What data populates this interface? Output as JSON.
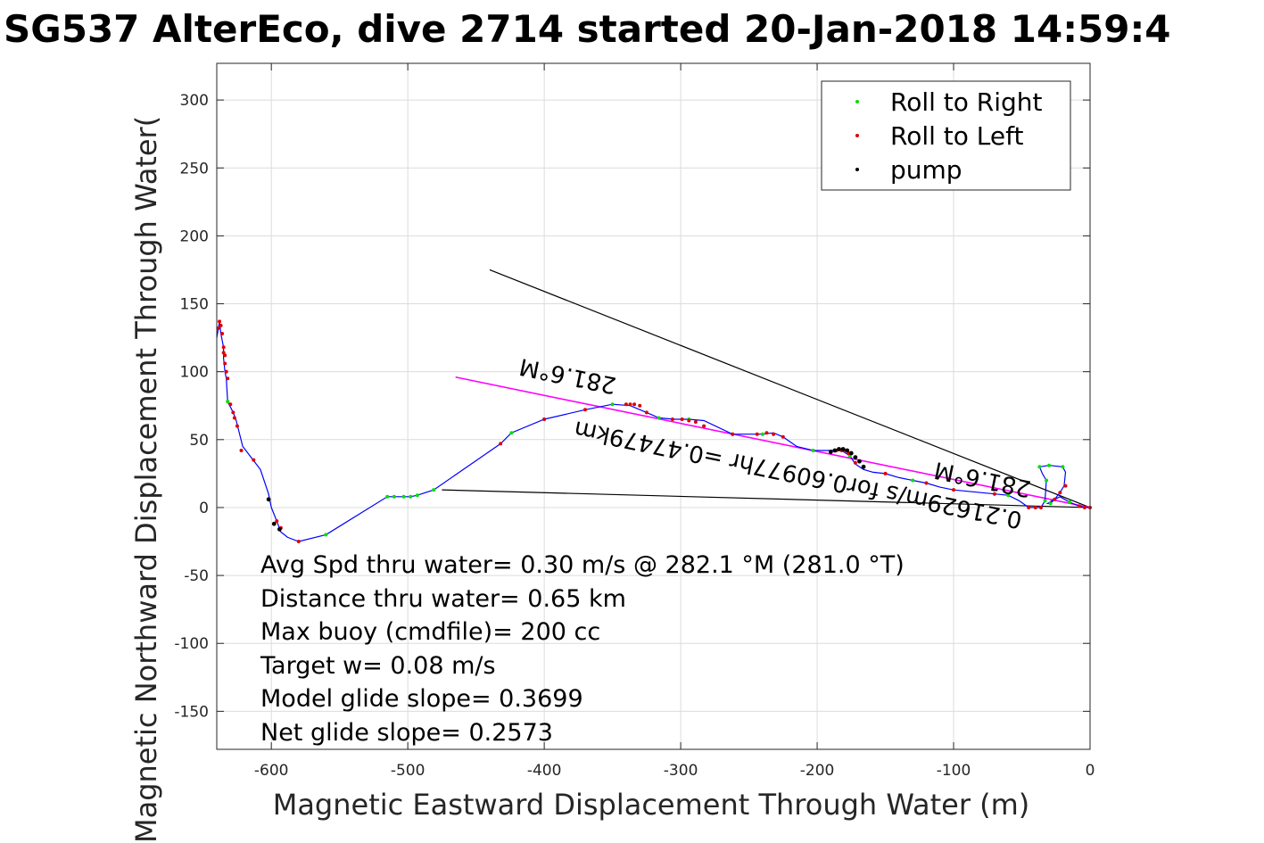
{
  "chart_data": {
    "type": "line",
    "title": "SG537 AlterEco, dive 2714 started 20-Jan-2018 14:59:4",
    "xlabel": "Magnetic Eastward Displacement Through Water (m)",
    "ylabel": "Magnetic Northward Displacement Through Water(",
    "xlim": [
      -640,
      0
    ],
    "ylim": [
      -178,
      327
    ],
    "xticks": [
      -600,
      -500,
      -400,
      -300,
      -200,
      -100,
      0
    ],
    "yticks": [
      -150,
      -100,
      -50,
      0,
      50,
      100,
      150,
      200,
      250,
      300
    ],
    "xtick_labels": [
      "-600",
      "-500",
      "-400",
      "-300",
      "-200",
      "-100",
      "0"
    ],
    "ytick_labels": [
      "-150",
      "-100",
      "-50",
      "0",
      "50",
      "100",
      "150",
      "200",
      "250",
      "300"
    ],
    "grid": true,
    "legend_position": "top-right",
    "legend": [
      {
        "label": "Roll to Right",
        "color": "#00e000"
      },
      {
        "label": "Roll to Left",
        "color": "#e00000"
      },
      {
        "label": "pump",
        "color": "#000000"
      }
    ],
    "track_color": "#0000ff",
    "track": {
      "x": [
        -640,
        -638,
        -637,
        -635,
        -635,
        -634,
        -633,
        -632,
        -628,
        -626,
        -621,
        -608,
        -602,
        -600,
        -596,
        -593,
        -588,
        -580,
        -560,
        -515,
        -510,
        -503,
        -498,
        -493,
        -481,
        -432,
        -424,
        -400,
        -370,
        -350,
        -337,
        -325,
        -316,
        -305,
        -294,
        -283,
        -262,
        -250,
        -240,
        -232,
        -225,
        -215,
        -203,
        -190,
        -182,
        -176,
        -172,
        -166,
        -159,
        -150,
        -140,
        -130,
        -120,
        -110,
        -100,
        -90,
        -80,
        -70,
        -60,
        -52,
        -45,
        -40,
        -36,
        -33,
        -32,
        -35,
        -37,
        -30,
        -20,
        -18,
        -19,
        -22,
        -26,
        -29,
        -31,
        -28,
        -22,
        -15,
        -8,
        -4,
        0
      ],
      "y": [
        125,
        137,
        128,
        118,
        110,
        100,
        95,
        78,
        70,
        65,
        45,
        28,
        10,
        0,
        -10,
        -18,
        -22,
        -25,
        -20,
        8,
        8,
        8,
        8,
        9,
        13,
        47,
        55,
        65,
        72,
        76,
        75,
        70,
        66,
        65,
        65,
        64,
        54,
        54,
        54,
        55,
        52,
        45,
        42,
        42,
        42,
        38,
        32,
        28,
        26,
        25,
        22,
        20,
        18,
        15,
        13,
        12,
        11,
        10,
        9,
        5,
        0,
        0,
        0,
        5,
        20,
        25,
        30,
        31,
        30,
        26,
        16,
        11,
        6,
        3,
        3,
        5,
        8,
        4,
        1,
        0,
        0
      ]
    },
    "roll_right": {
      "x": [
        -632,
        -602,
        -560,
        -515,
        -510,
        -503,
        -498,
        -493,
        -481,
        -424,
        -400,
        -350,
        -316,
        -294,
        -262,
        -240,
        -203,
        -176,
        -130,
        -60,
        -37,
        -33,
        -32,
        -30,
        -20,
        -29,
        -15
      ],
      "y": [
        78,
        6,
        -20,
        8,
        8,
        8,
        8,
        9,
        13,
        55,
        65,
        76,
        66,
        65,
        54,
        54,
        42,
        38,
        20,
        9,
        30,
        5,
        20,
        31,
        30,
        3,
        4
      ]
    },
    "roll_left": {
      "x": [
        -639,
        -638,
        -637,
        -636,
        -635,
        -635,
        -634,
        -634,
        -633,
        -632,
        -630,
        -628,
        -627,
        -625,
        -622,
        -613,
        -596,
        -593,
        -580,
        -432,
        -400,
        -370,
        -340,
        -337,
        -334,
        -330,
        -325,
        -306,
        -299,
        -294,
        -289,
        -283,
        -262,
        -244,
        -237,
        -232,
        -225,
        -186,
        -182,
        -180,
        -177,
        -172,
        -150,
        -120,
        -100,
        -70,
        -45,
        -40,
        -36,
        -26,
        -22,
        -18,
        -8,
        -4,
        0
      ],
      "y": [
        132,
        137,
        134,
        128,
        118,
        114,
        112,
        106,
        100,
        95,
        76,
        70,
        66,
        60,
        42,
        35,
        -10,
        -15,
        -25,
        47,
        65,
        72,
        76,
        76,
        76,
        75,
        70,
        65,
        65,
        64,
        63,
        60,
        54,
        54,
        55,
        54,
        52,
        42,
        42,
        42,
        40,
        33,
        25,
        18,
        13,
        10,
        0,
        0,
        0,
        6,
        11,
        16,
        1,
        0,
        0
      ]
    },
    "pump": {
      "x": [
        -602,
        -598,
        -594,
        -190,
        -187,
        -184,
        -181,
        -178,
        -175,
        -172,
        -169,
        -166
      ],
      "y": [
        6,
        -12,
        -16,
        41,
        42,
        43,
        43,
        42,
        40,
        37,
        34,
        30
      ]
    },
    "black_lines": [
      {
        "x": [
          -440,
          0
        ],
        "y": [
          175,
          0
        ]
      },
      {
        "x": [
          -475,
          0
        ],
        "y": [
          13,
          0
        ]
      }
    ],
    "fit_line": {
      "x": [
        -465,
        0
      ],
      "y": [
        96,
        0
      ],
      "color": "#ff00ff"
    },
    "annotations": {
      "line1_label": "281.6°M",
      "line2_label": "0.47479km",
      "speed_label": "0.21629m/s for0.60977hr =0.47479km",
      "short_label": "281.6°M",
      "tail_label": "0.21629m/s"
    },
    "stats": [
      "Avg Spd thru water=  0.30 m/s @ 282.1 °M (281.0 °T)",
      "Distance thru water=  0.65 km",
      "Max buoy (cmdfile)= 200 cc",
      "Target w= 0.08 m/s",
      "Model glide slope= 0.3699",
      "Net glide slope= 0.2573"
    ]
  }
}
